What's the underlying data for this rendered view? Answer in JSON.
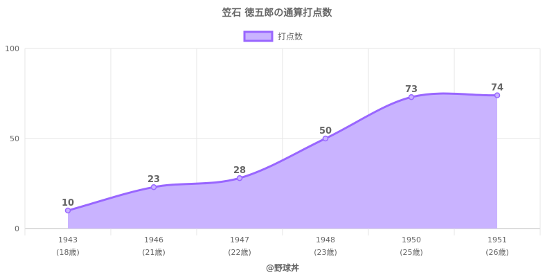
{
  "chart_data": {
    "type": "area",
    "title": "笠石 徳五郎の通算打点数",
    "series": [
      {
        "name": "打点数",
        "values": [
          10,
          23,
          28,
          50,
          73,
          74
        ]
      }
    ],
    "categories": [
      "1943",
      "1946",
      "1947",
      "1948",
      "1950",
      "1951"
    ],
    "category_sublabels": [
      "(18歳)",
      "(21歳)",
      "(22歳)",
      "(23歳)",
      "(25歳)",
      "(26歳)"
    ],
    "data_labels": [
      "10",
      "23",
      "28",
      "50",
      "73",
      "74"
    ],
    "yticks": [
      "0",
      "50",
      "100"
    ],
    "ylim": [
      0,
      100
    ],
    "grid": true,
    "legend": "top-center",
    "colors": {
      "line": "#9966ff",
      "fill": "#c9b3ff",
      "grid": "#e5e5e5",
      "text": "#666666"
    }
  },
  "credit": "@野球丼"
}
